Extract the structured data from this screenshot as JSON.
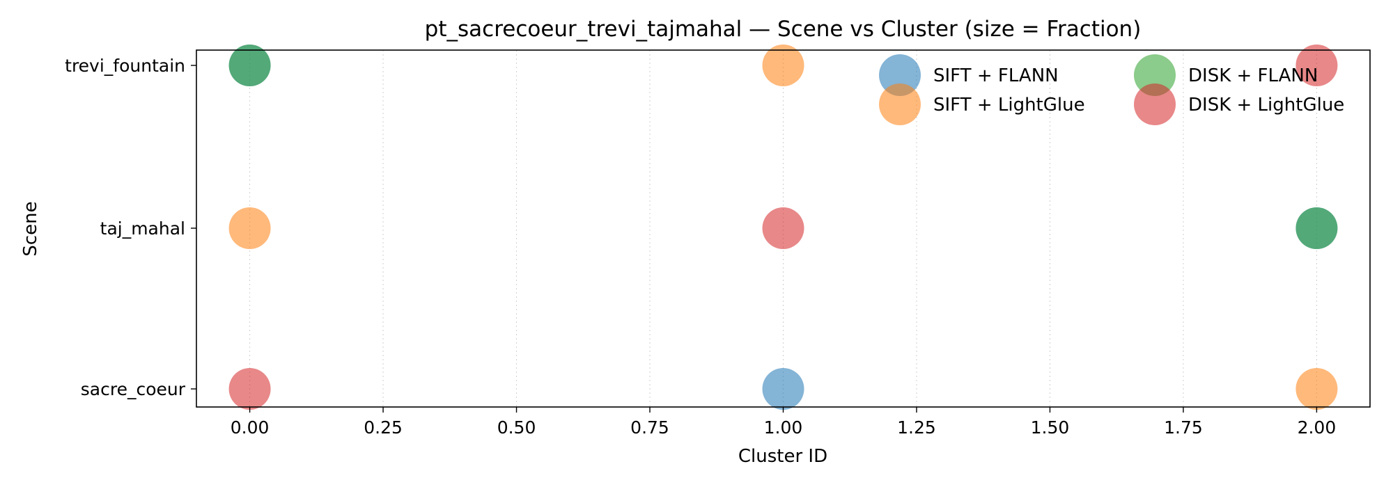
{
  "chart_data": {
    "type": "scatter",
    "title": "pt_sacrecoeur_trevi_tajmahal — Scene vs Cluster (size = Fraction)",
    "xlabel": "Cluster ID",
    "ylabel": "Scene",
    "xlim": [
      -0.1,
      2.1
    ],
    "xticks": [
      "0.00",
      "0.25",
      "0.50",
      "0.75",
      "1.00",
      "1.25",
      "1.50",
      "1.75",
      "2.00"
    ],
    "categories_y": [
      "sacre_coeur",
      "taj_mahal",
      "trevi_fountain"
    ],
    "grid": "x, dotted",
    "legend_position": "top-right",
    "series": [
      {
        "name": "SIFT + FLANN",
        "color": "#1f77b4",
        "points": [
          {
            "x": 1,
            "y": "sacre_coeur"
          },
          {
            "x": 2,
            "y": "taj_mahal"
          },
          {
            "x": 0,
            "y": "trevi_fountain"
          }
        ]
      },
      {
        "name": "SIFT + LightGlue",
        "color": "#ff7f0e",
        "points": [
          {
            "x": 0,
            "y": "taj_mahal"
          },
          {
            "x": 1,
            "y": "trevi_fountain"
          },
          {
            "x": 2,
            "y": "sacre_coeur"
          }
        ]
      },
      {
        "name": "DISK + FLANN",
        "color": "#2ca02c",
        "points": [
          {
            "x": 0,
            "y": "trevi_fountain"
          },
          {
            "x": 2,
            "y": "taj_mahal"
          }
        ]
      },
      {
        "name": "DISK + LightGlue",
        "color": "#d62728",
        "points": [
          {
            "x": 0,
            "y": "sacre_coeur"
          },
          {
            "x": 1,
            "y": "taj_mahal"
          },
          {
            "x": 2,
            "y": "trevi_fountain"
          }
        ]
      }
    ]
  }
}
